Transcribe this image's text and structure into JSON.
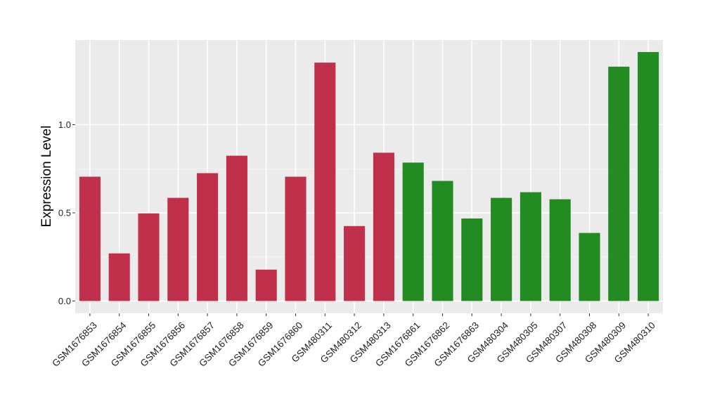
{
  "chart_data": {
    "type": "bar",
    "title": "",
    "xlabel": "",
    "ylabel": "Expression Level",
    "ylim": [
      -0.07,
      1.48
    ],
    "yticks": [
      0.0,
      0.5,
      1.0
    ],
    "ytick_labels": [
      "0.0",
      "0.5",
      "1.0"
    ],
    "grid": true,
    "categories": [
      "GSM1676853",
      "GSM1676854",
      "GSM1676855",
      "GSM1676856",
      "GSM1676857",
      "GSM1676858",
      "GSM1676859",
      "GSM1676860",
      "GSM480311",
      "GSM480312",
      "GSM480313",
      "GSM1676861",
      "GSM1676862",
      "GSM1676863",
      "GSM480304",
      "GSM480305",
      "GSM480307",
      "GSM480308",
      "GSM480309",
      "GSM480310"
    ],
    "values": [
      0.705,
      0.27,
      0.497,
      0.585,
      0.725,
      0.824,
      0.178,
      0.705,
      1.352,
      0.425,
      0.841,
      0.785,
      0.681,
      0.468,
      0.585,
      0.617,
      0.577,
      0.386,
      1.329,
      1.412
    ],
    "groups": [
      "red",
      "red",
      "red",
      "red",
      "red",
      "red",
      "red",
      "red",
      "red",
      "red",
      "red",
      "green",
      "green",
      "green",
      "green",
      "green",
      "green",
      "green",
      "green",
      "green"
    ],
    "colors": {
      "red": "#C0304A",
      "green": "#228B22",
      "panel": "#EBEBEB",
      "grid_major": "#FFFFFF",
      "grid_minor": "#F5F5F5",
      "axis_text": "#222222"
    }
  }
}
